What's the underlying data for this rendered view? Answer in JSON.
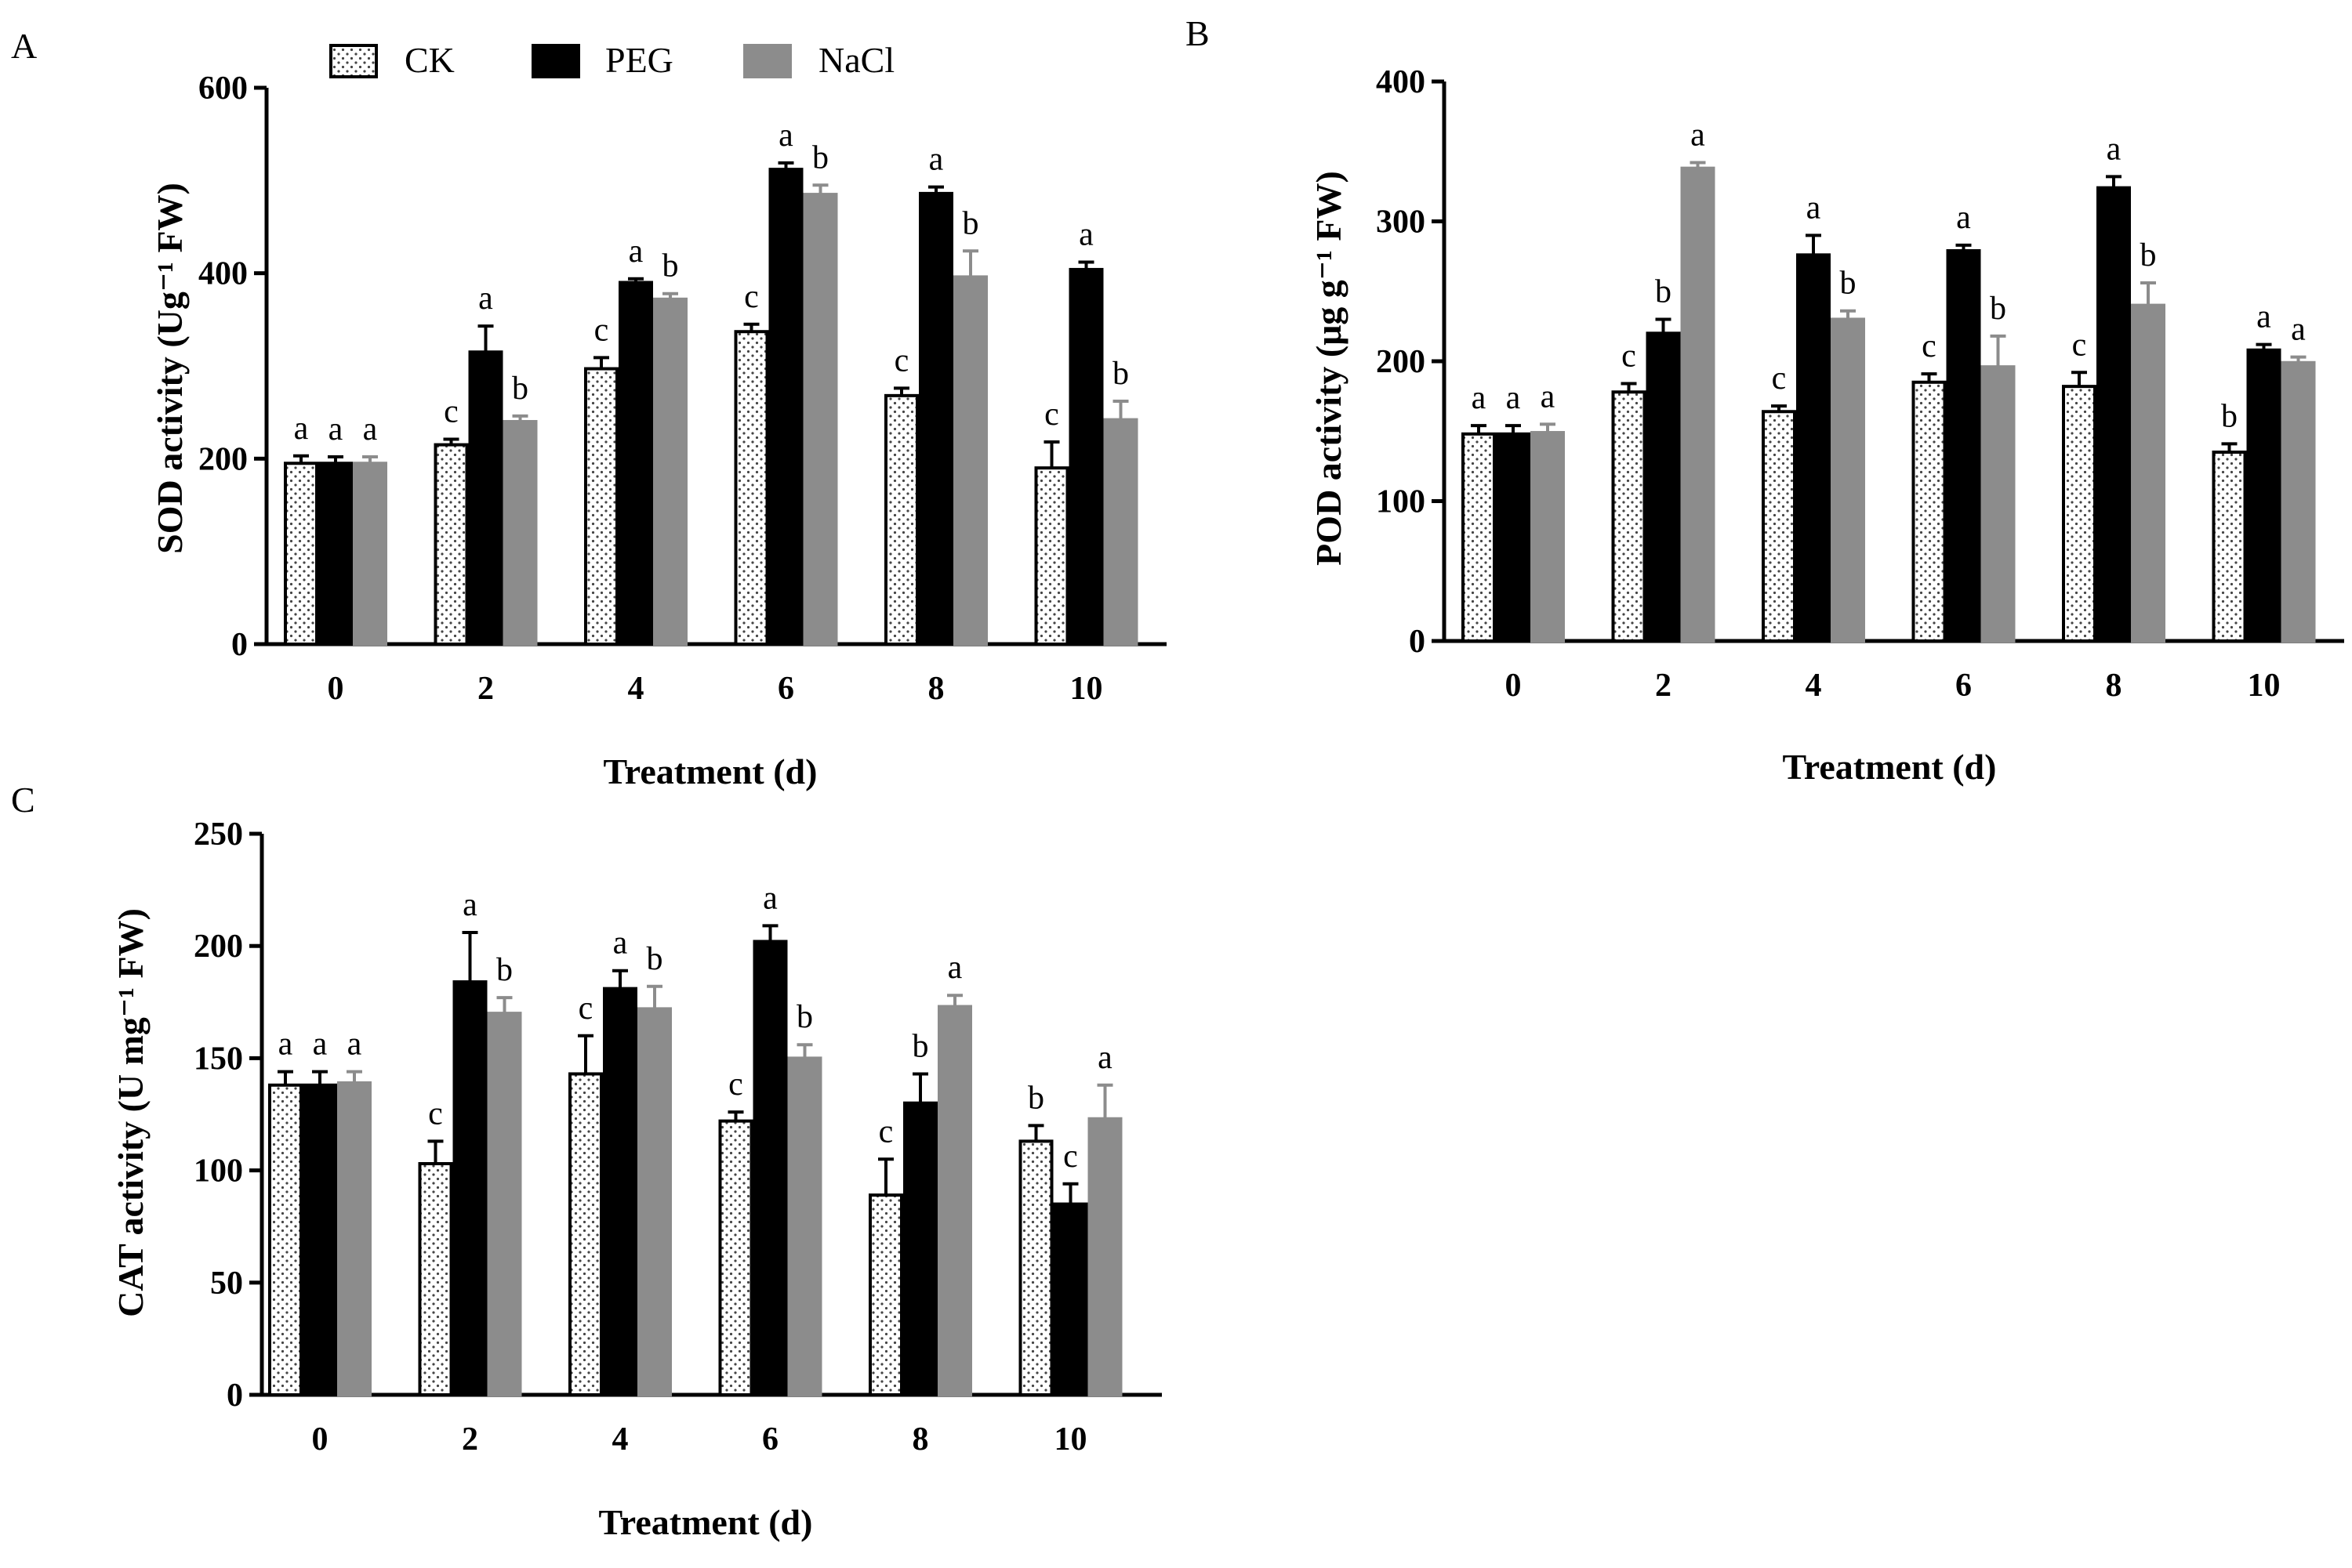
{
  "colors": {
    "CK": "#ffffff",
    "PEG": "#000000",
    "NaCl": "#8c8c8c",
    "axis": "#000000"
  },
  "legend": {
    "items": [
      {
        "key": "CK",
        "label": "CK"
      },
      {
        "key": "PEG",
        "label": "PEG"
      },
      {
        "key": "NaCl",
        "label": "NaCl"
      }
    ]
  },
  "chart_data": [
    {
      "type": "bar",
      "panel": "A",
      "title": "",
      "xlabel": "Treatment (d)",
      "ylabel": "SOD activity (Ug⁻¹ FW)",
      "ylim": [
        0,
        600
      ],
      "yticks": [
        0,
        200,
        400,
        600
      ],
      "categories": [
        "0",
        "2",
        "4",
        "6",
        "8",
        "10"
      ],
      "series": [
        {
          "name": "CK",
          "values": [
            195,
            215,
            297,
            337,
            268,
            190
          ],
          "errors": [
            8,
            6,
            12,
            8,
            8,
            28
          ],
          "letters": [
            "a",
            "c",
            "c",
            "c",
            "c",
            "c"
          ]
        },
        {
          "name": "PEG",
          "values": [
            195,
            315,
            390,
            512,
            486,
            404
          ],
          "errors": [
            7,
            28,
            4,
            7,
            7,
            8
          ],
          "letters": [
            "a",
            "a",
            "a",
            "a",
            "a",
            "a"
          ]
        },
        {
          "name": "NaCl",
          "values": [
            195,
            240,
            372,
            485,
            396,
            242
          ],
          "errors": [
            7,
            6,
            6,
            10,
            28,
            20
          ],
          "letters": [
            "a",
            "b",
            "b",
            "b",
            "b",
            "b"
          ]
        }
      ]
    },
    {
      "type": "bar",
      "panel": "B",
      "title": "",
      "xlabel": "Treatment (d)",
      "ylabel": "POD activity (μg g⁻¹ FW)",
      "ylim": [
        0,
        400
      ],
      "yticks": [
        0,
        100,
        200,
        300,
        400
      ],
      "categories": [
        "0",
        "2",
        "4",
        "6",
        "8",
        "10"
      ],
      "series": [
        {
          "name": "CK",
          "values": [
            148,
            178,
            164,
            185,
            182,
            135
          ],
          "errors": [
            6,
            6,
            4,
            6,
            10,
            6
          ],
          "letters": [
            "a",
            "c",
            "c",
            "c",
            "c",
            "b"
          ]
        },
        {
          "name": "PEG",
          "values": [
            148,
            220,
            276,
            279,
            324,
            208
          ],
          "errors": [
            6,
            10,
            14,
            4,
            8,
            4
          ],
          "letters": [
            "a",
            "b",
            "a",
            "a",
            "a",
            "a"
          ]
        },
        {
          "name": "NaCl",
          "values": [
            149,
            338,
            230,
            196,
            240,
            199
          ],
          "errors": [
            6,
            4,
            6,
            22,
            16,
            4
          ],
          "letters": [
            "a",
            "a",
            "b",
            "b",
            "b",
            "a"
          ]
        }
      ]
    },
    {
      "type": "bar",
      "panel": "C",
      "title": "",
      "xlabel": "Treatment (d)",
      "ylabel": "CAT activity (U mg⁻¹ FW)",
      "ylim": [
        0,
        250
      ],
      "yticks": [
        0,
        50,
        100,
        150,
        200,
        250
      ],
      "categories": [
        "0",
        "2",
        "4",
        "6",
        "8",
        "10"
      ],
      "series": [
        {
          "name": "CK",
          "values": [
            138,
            103,
            143,
            122,
            89,
            113
          ],
          "errors": [
            6,
            10,
            17,
            4,
            16,
            7
          ],
          "letters": [
            "a",
            "c",
            "c",
            "c",
            "c",
            "b"
          ]
        },
        {
          "name": "PEG",
          "values": [
            138,
            184,
            181,
            202,
            130,
            85
          ],
          "errors": [
            6,
            22,
            8,
            7,
            13,
            9
          ],
          "letters": [
            "a",
            "a",
            "a",
            "a",
            "b",
            "c"
          ]
        },
        {
          "name": "NaCl",
          "values": [
            139,
            170,
            172,
            150,
            173,
            123
          ],
          "errors": [
            5,
            7,
            10,
            6,
            5,
            15
          ],
          "letters": [
            "a",
            "b",
            "b",
            "b",
            "a",
            "a"
          ]
        }
      ]
    }
  ]
}
